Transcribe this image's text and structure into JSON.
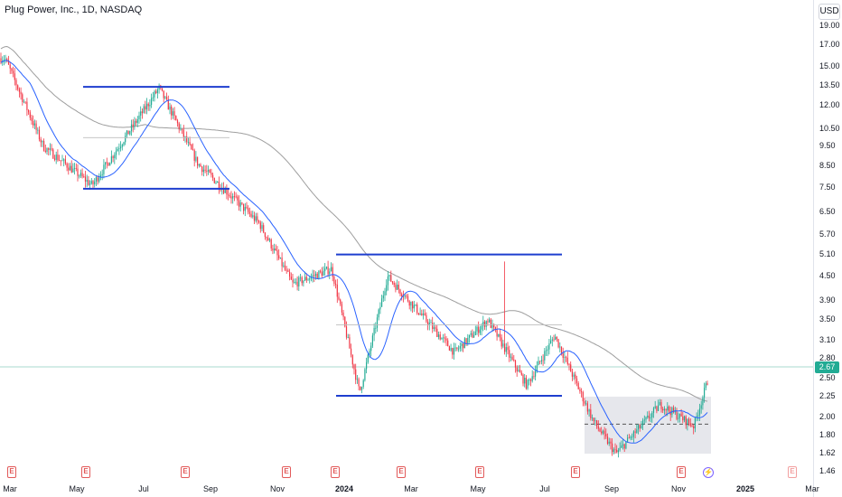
{
  "header": {
    "title": "Plug Power, Inc., 1D, NASDAQ",
    "currency": "USD"
  },
  "price_axis": {
    "labels": [
      "19.00",
      "17.00",
      "15.00",
      "13.50",
      "12.00",
      "10.50",
      "9.50",
      "8.50",
      "7.50",
      "6.50",
      "5.70",
      "5.10",
      "4.50",
      "3.90",
      "3.50",
      "3.10",
      "2.80",
      "2.50",
      "2.25",
      "2.00",
      "1.80",
      "1.62",
      "1.46"
    ],
    "current_price": "2.67"
  },
  "time_axis": {
    "labels": [
      {
        "text": "Mar",
        "year": false
      },
      {
        "text": "May",
        "year": false
      },
      {
        "text": "Jul",
        "year": false
      },
      {
        "text": "Sep",
        "year": false
      },
      {
        "text": "Nov",
        "year": false
      },
      {
        "text": "2024",
        "year": true
      },
      {
        "text": "Mar",
        "year": false
      },
      {
        "text": "May",
        "year": false
      },
      {
        "text": "Jul",
        "year": false
      },
      {
        "text": "Sep",
        "year": false
      },
      {
        "text": "Nov",
        "year": false
      },
      {
        "text": "2025",
        "year": true
      },
      {
        "text": "Mar",
        "year": false
      }
    ]
  },
  "markers": {
    "earnings_label": "E",
    "dividend_label": "⚡",
    "earnings_count": 9
  },
  "colors": {
    "up": "#22ab94",
    "down": "#f23645",
    "ma_fast": "#2962ff",
    "ma_slow": "#9e9e9e",
    "level_lines": "#1e3ecf",
    "box_fill": "#d1d4dc"
  },
  "chart_data": {
    "type": "candlestick",
    "symbol": "Plug Power, Inc.",
    "interval": "1D",
    "exchange": "NASDAQ",
    "scale": "log",
    "x_range": [
      "2023-03",
      "2025-03"
    ],
    "y_range": [
      1.46,
      19.0
    ],
    "last_price": 2.67,
    "close_trend_approx": [
      {
        "date": "2023-02-27",
        "close": 15.8
      },
      {
        "date": "2023-04-01",
        "close": 9.5
      },
      {
        "date": "2023-05-15",
        "close": 7.6
      },
      {
        "date": "2023-07-15",
        "close": 13.3
      },
      {
        "date": "2023-08-20",
        "close": 8.6
      },
      {
        "date": "2023-10-15",
        "close": 6.1
      },
      {
        "date": "2023-11-15",
        "close": 4.3
      },
      {
        "date": "2023-12-20",
        "close": 4.7
      },
      {
        "date": "2024-01-15",
        "close": 2.3
      },
      {
        "date": "2024-02-10",
        "close": 4.5
      },
      {
        "date": "2024-04-10",
        "close": 2.9
      },
      {
        "date": "2024-05-10",
        "close": 3.5
      },
      {
        "date": "2024-06-15",
        "close": 2.4
      },
      {
        "date": "2024-07-10",
        "close": 3.2
      },
      {
        "date": "2024-08-15",
        "close": 1.95
      },
      {
        "date": "2024-09-05",
        "close": 1.62
      },
      {
        "date": "2024-10-15",
        "close": 2.15
      },
      {
        "date": "2024-11-15",
        "close": 1.9
      },
      {
        "date": "2024-12-01",
        "close": 2.67
      }
    ],
    "horizontal_levels": [
      {
        "price": 13.4,
        "from": "2023-05",
        "to": "2023-09"
      },
      {
        "price": 7.45,
        "from": "2023-05",
        "to": "2023-09"
      },
      {
        "price": 5.1,
        "from": "2023-12",
        "to": "2024-09"
      },
      {
        "price": 2.26,
        "from": "2023-12",
        "to": "2024-07"
      }
    ],
    "range_box": {
      "top": 2.25,
      "bottom": 1.62,
      "from": "2024-08",
      "to": "2024-12",
      "mid": 1.92
    },
    "grid": false,
    "legend": "none"
  }
}
